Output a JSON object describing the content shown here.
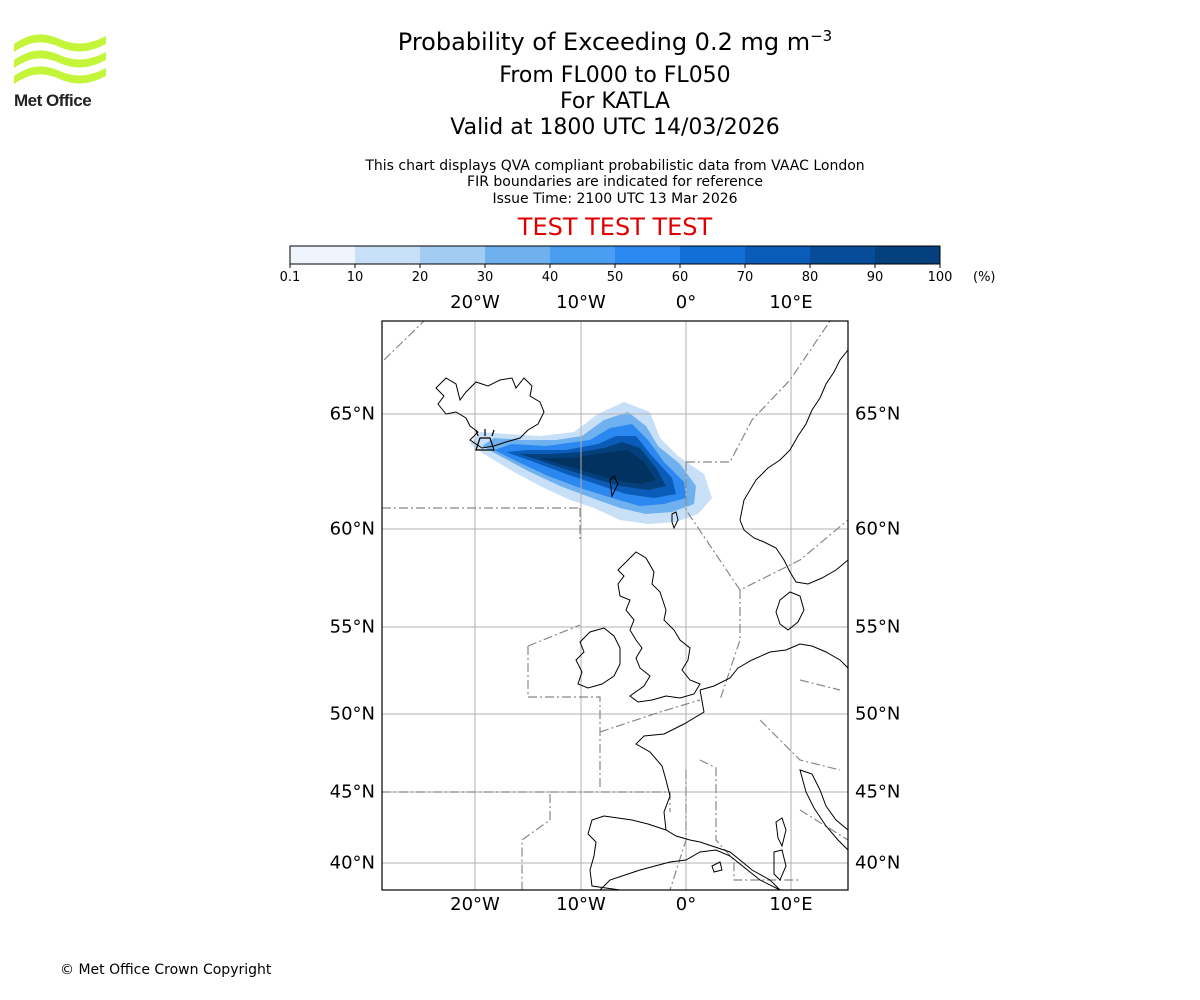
{
  "logo": {
    "text": "Met Office",
    "wave_color": "#c4f53a"
  },
  "title": {
    "main_prefix": "Probability of Exceeding 0.2 mg m",
    "main_superscript": "−3",
    "line2": "From FL000 to FL050",
    "line3": "For KATLA",
    "line4": "Valid at 1800 UTC 14/03/2026"
  },
  "subtitle": {
    "line1": "This chart displays QVA compliant probabilistic data from VAAC London",
    "line2": "FIR boundaries are indicated for reference",
    "line3": "Issue Time: 2100 UTC 13 Mar 2026"
  },
  "warning": {
    "text": "TEST TEST TEST",
    "color": "#e00000"
  },
  "colorbar": {
    "ticks": [
      "0.1",
      "10",
      "20",
      "30",
      "40",
      "50",
      "60",
      "70",
      "80",
      "90",
      "100"
    ],
    "unit": "(%)",
    "colors": [
      "#eef5fd",
      "#c7e0f8",
      "#a3ccf3",
      "#6fb1ee",
      "#4a9df0",
      "#2b88f0",
      "#1170d8",
      "#0a5cb8",
      "#064c98",
      "#04407c",
      "#02325f"
    ]
  },
  "axes": {
    "lon_labels": [
      "20°W",
      "10°W",
      "0°",
      "10°E"
    ],
    "lat_labels": [
      "65°N",
      "60°N",
      "55°N",
      "50°N",
      "45°N",
      "40°N"
    ]
  },
  "map_data": {
    "volcano": "KATLA",
    "volcano_lon": -19.05,
    "volcano_lat": 63.63,
    "plume_probability_max_percent": 100
  },
  "footer": {
    "copyright": "© Met Office Crown Copyright"
  }
}
